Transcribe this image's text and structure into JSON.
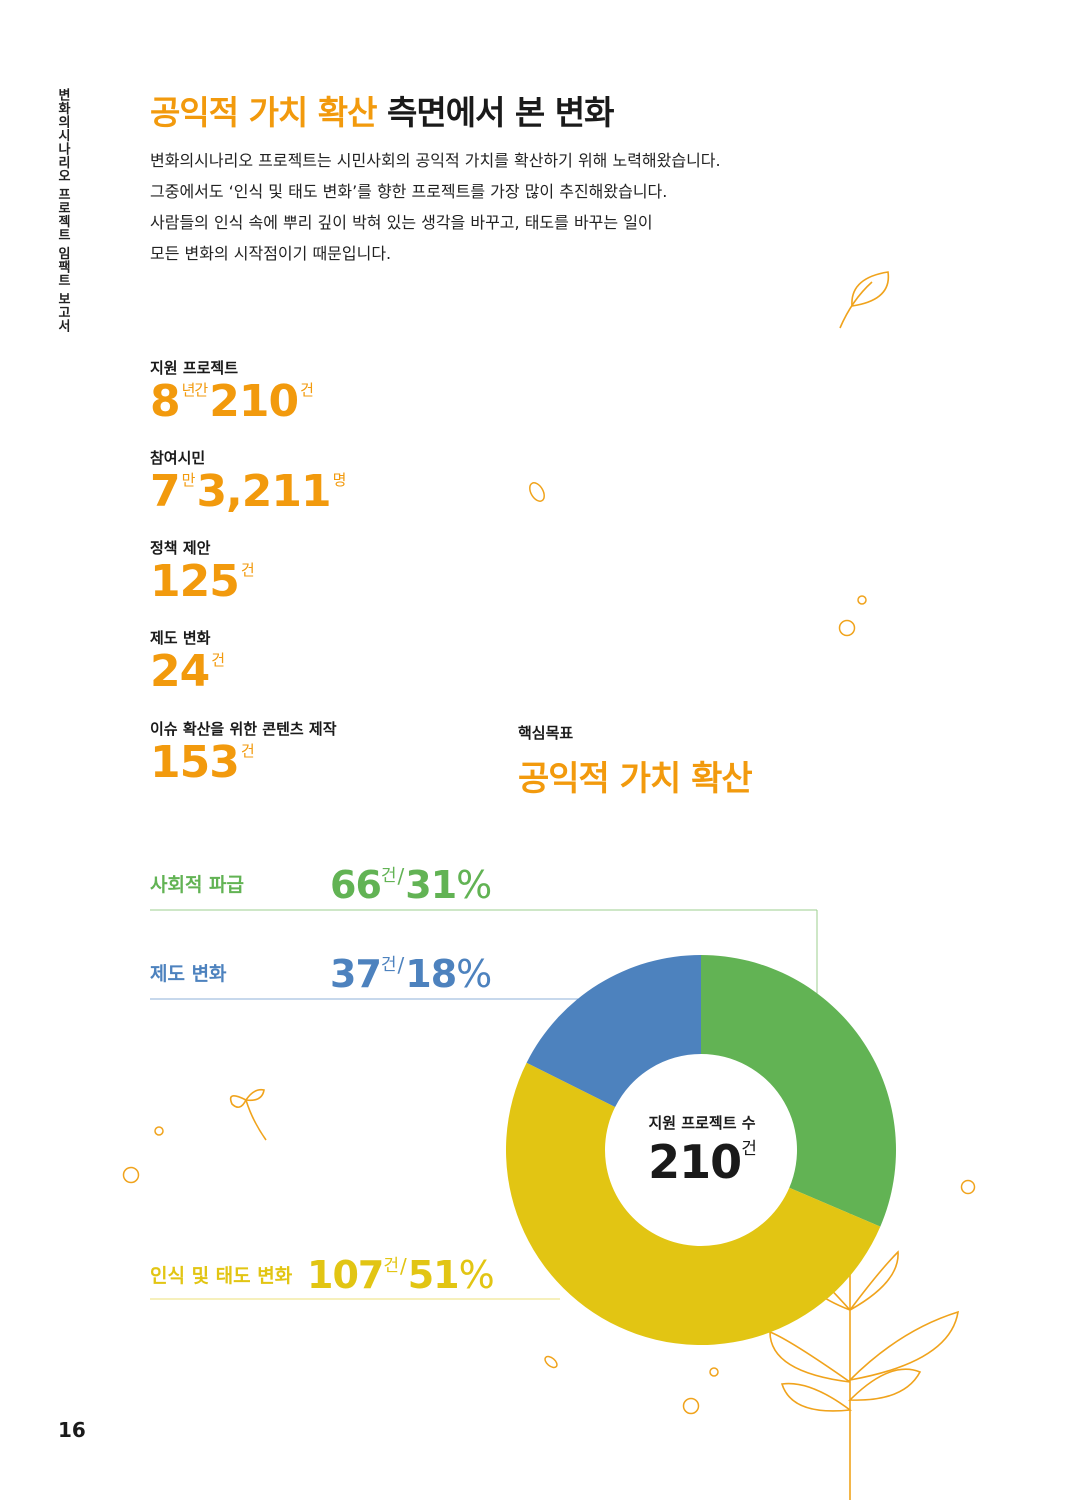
{
  "side_label": "변화의시나리오 프로젝트 임팩트 보고서",
  "page_number": "16",
  "title": {
    "accent": "공익적 가치 확산",
    "rest": " 측면에서 본 변화"
  },
  "intro": [
    "변화의시나리오 프로젝트는 시민사회의 공익적 가치를 확산하기 위해 노력해왔습니다.",
    "그중에서도 ‘인식 및 태도 변화’를 향한 프로젝트를 가장 많이 추진해왔습니다.",
    "사람들의 인식 속에 뿌리 깊이 박혀 있는 생각을 바꾸고, 태도를 바꾸는 일이",
    "모든 변화의 시작점이기 때문입니다."
  ],
  "stats": {
    "projects": {
      "label": "지원 프로젝트",
      "years": "8",
      "years_unit": "년간",
      "count": "210",
      "count_unit": "건"
    },
    "citizens": {
      "label": "참여시민",
      "man": "7",
      "man_unit": "만",
      "rest": "3,211",
      "unit": "명"
    },
    "policy": {
      "label": "정책 제안",
      "value": "125",
      "unit": "건"
    },
    "system": {
      "label": "제도 변화",
      "value": "24",
      "unit": "건"
    },
    "contents": {
      "label": "이슈 확산을 위한 콘텐츠 제작",
      "value": "153",
      "unit": "건"
    }
  },
  "goal": {
    "label": "핵심목표",
    "value": "공익적 가치 확산"
  },
  "breakdown": [
    {
      "name": "사회적 파급",
      "count": "66",
      "unit": "건",
      "slash": "/",
      "pct": "31",
      "pct_sign": "%",
      "color": "#62b354"
    },
    {
      "name": "제도 변화",
      "count": "37",
      "unit": "건",
      "slash": "/",
      "pct": "18",
      "pct_sign": "%",
      "color": "#4d82be"
    },
    {
      "name": "인식 및 태도 변화",
      "count": "107",
      "unit": "건",
      "slash": "/",
      "pct": "51",
      "pct_sign": "%",
      "color": "#e2c513"
    }
  ],
  "donut": {
    "center_label": "지원 프로젝트 수",
    "center_value": "210",
    "center_unit": "건",
    "total": 210,
    "segments": [
      {
        "count": 66,
        "color": "#62b354"
      },
      {
        "count": 107,
        "color": "#e2c513"
      },
      {
        "count": 37,
        "color": "#4d82be"
      }
    ]
  }
}
